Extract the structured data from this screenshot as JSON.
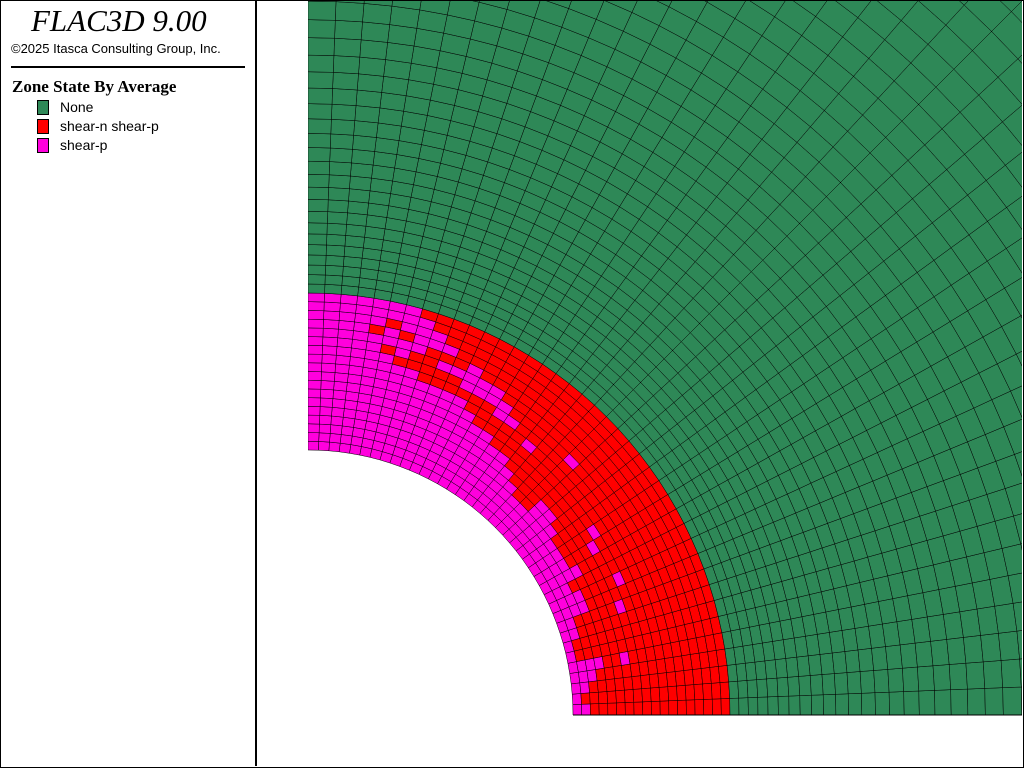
{
  "app": {
    "title": "FLAC3D 9.00",
    "copyright": "©2025 Itasca Consulting Group, Inc."
  },
  "legend": {
    "title": "Zone State By Average",
    "items": [
      {
        "label": "None",
        "color": "#2e8857"
      },
      {
        "label": "shear-n shear-p",
        "color": "#ff0000"
      },
      {
        "label": "shear-p",
        "color": "#ff00dd"
      }
    ]
  },
  "mesh_colors": {
    "none": "#2e8857",
    "shear_n_shear_p": "#ff0000",
    "shear_p": "#ff00dd",
    "grid_line": "#000000"
  },
  "zone_pattern": [
    "mmmmmmmmmmmmmmmmmmmmmmmmmmmmmmmmmmmmmmmm",
    "mrmmmrrmmmmmmmmmmmmmmmmmmmmmmmmmmmmmmmmm",
    "rrrmmrrrrmmmmmmmmmmmmmmmmmmmmmmmmmmmmmmm",
    "rrrrmrrrrmmrmmmmmmmmmmmmmmmmmmmmmmmmmmmm",
    "rrrrrrrrrrrrmrrrmmmrrmmmmmmmmmmmmmmmmmmm",
    "rrrrrrrrrrrrrrrrrmmrrrmmmmmmmmmmmmmmmmmm",
    "rrrrmrrrrrrrrrrrrrrrrrrmmmmmmmmmmmmmmmmm",
    "rrrrrrrrmrrrrmrrrrrrrrrrrmmmmmmmmmmmmmmm",
    "rrrrrrrrrrmrrrmrrrrrrrrrrrrmmmmmmmmmmmmm",
    "rrrrrrrrrrrrrrrrrrrrrrmrrrrrmmmmmmmmmmmm",
    "rrrrrrrrrrrrrrrrrrrrrrrrmmrrrrrrmmmmmmmm",
    "rrrrrrrrrrrrrrrrrrrmrrrrrmmmmrrrrrmmmmmm",
    "rrrrrrrrrrrrrrrrrrrrrrrrrrmmmmmrrmrmmmmm",
    "rrrrrrrrrrrrrrrrrrrrrrrrrrrrmrrrmmmmmmmm",
    "rrrrrrrrrrrrrrrrrrrrrrrrrrrrrrmmmrmrmmmm",
    "rrrrrrrrrrrrrrrrrrrrrrrrrrrrrrrmmmrmmmmm",
    "rrrrrrrrrrrrrrrrrrrrrrrrrrrrrrrrmmmmmmmm",
    "rrrrrrrrrrrrrrrrrrrrrrrrrrrrrrrrrmmmmmmm"
  ]
}
